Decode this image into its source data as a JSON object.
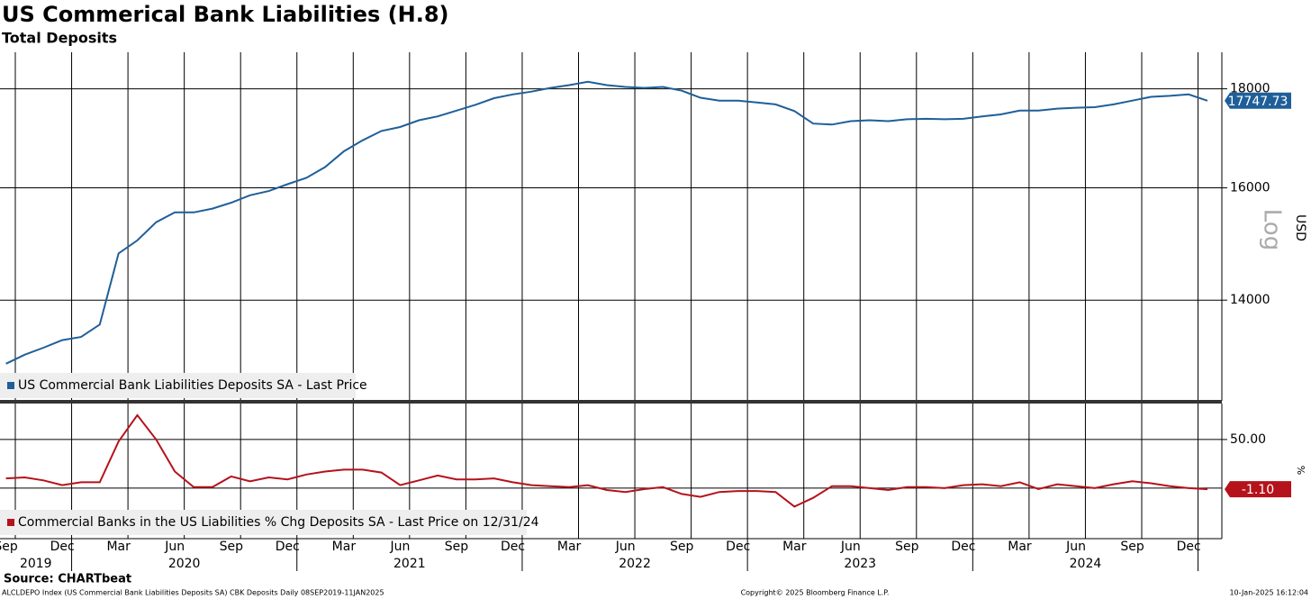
{
  "title": "US Commerical Bank Liabilities (H.8)",
  "subtitle": "Total Deposits",
  "source": "Source: CHARTbeat",
  "footer_left": "ALCLDEPO Index (US Commercial Bank Liabilities Deposits SA) CBK Deposits  Daily 08SEP2019-11JAN2025",
  "footer_center": "Copyright© 2025 Bloomberg Finance L.P.",
  "footer_right": "10-Jan-2025 16:12:04",
  "x": [
    "2019-09",
    "2019-10",
    "2019-11",
    "2019-12",
    "2020-01",
    "2020-02",
    "2020-03",
    "2020-04",
    "2020-05",
    "2020-06",
    "2020-07",
    "2020-08",
    "2020-09",
    "2020-10",
    "2020-11",
    "2020-12",
    "2021-01",
    "2021-02",
    "2021-03",
    "2021-04",
    "2021-05",
    "2021-06",
    "2021-07",
    "2021-08",
    "2021-09",
    "2021-10",
    "2021-11",
    "2021-12",
    "2022-01",
    "2022-02",
    "2022-03",
    "2022-04",
    "2022-05",
    "2022-06",
    "2022-07",
    "2022-08",
    "2022-09",
    "2022-10",
    "2022-11",
    "2022-12",
    "2023-01",
    "2023-02",
    "2023-03",
    "2023-04",
    "2023-05",
    "2023-06",
    "2023-07",
    "2023-08",
    "2023-09",
    "2023-10",
    "2023-11",
    "2023-12",
    "2024-01",
    "2024-02",
    "2024-03",
    "2024-04",
    "2024-05",
    "2024-06",
    "2024-07",
    "2024-08",
    "2024-09",
    "2024-10",
    "2024-11",
    "2024-12",
    "2025-01"
  ],
  "xticks": [
    {
      "value": "2019-09",
      "label": "Sep"
    },
    {
      "value": "2019-12",
      "label": "Dec"
    },
    {
      "value": "2020-03",
      "label": "Mar"
    },
    {
      "value": "2020-06",
      "label": "Jun"
    },
    {
      "value": "2020-09",
      "label": "Sep"
    },
    {
      "value": "2020-12",
      "label": "Dec"
    },
    {
      "value": "2021-03",
      "label": "Mar"
    },
    {
      "value": "2021-06",
      "label": "Jun"
    },
    {
      "value": "2021-09",
      "label": "Sep"
    },
    {
      "value": "2021-12",
      "label": "Dec"
    },
    {
      "value": "2022-03",
      "label": "Mar"
    },
    {
      "value": "2022-06",
      "label": "Jun"
    },
    {
      "value": "2022-09",
      "label": "Sep"
    },
    {
      "value": "2022-12",
      "label": "Dec"
    },
    {
      "value": "2023-03",
      "label": "Mar"
    },
    {
      "value": "2023-06",
      "label": "Jun"
    },
    {
      "value": "2023-09",
      "label": "Sep"
    },
    {
      "value": "2023-12",
      "label": "Dec"
    },
    {
      "value": "2024-03",
      "label": "Mar"
    },
    {
      "value": "2024-06",
      "label": "Jun"
    },
    {
      "value": "2024-09",
      "label": "Sep"
    },
    {
      "value": "2024-12",
      "label": "Dec"
    }
  ],
  "years": [
    "2019",
    "2020",
    "2021",
    "2022",
    "2023",
    "2024"
  ],
  "chart_data": [
    {
      "type": "line",
      "log": true,
      "ylabel": "USD",
      "scale_label": "Log",
      "ylim": [
        12420,
        18800
      ],
      "yticks": [
        18000,
        16000,
        14000
      ],
      "grid": true,
      "series": [
        {
          "name": "US Commercial Bank Liabilities Deposits SA - Last Price",
          "color": "#1f5f99",
          "values": [
            12980,
            13120,
            13230,
            13350,
            13400,
            13600,
            14800,
            15030,
            15360,
            15540,
            15540,
            15610,
            15720,
            15860,
            15940,
            16070,
            16190,
            16400,
            16710,
            16930,
            17120,
            17200,
            17340,
            17420,
            17540,
            17660,
            17800,
            17880,
            17940,
            18020,
            18080,
            18150,
            18080,
            18040,
            18020,
            18040,
            17960,
            17810,
            17750,
            17750,
            17710,
            17670,
            17530,
            17270,
            17250,
            17320,
            17340,
            17320,
            17360,
            17370,
            17360,
            17370,
            17420,
            17460,
            17540,
            17540,
            17580,
            17600,
            17610,
            17670,
            17750,
            17830,
            17850,
            17880,
            17747.73
          ],
          "last_label": "17747.73"
        }
      ]
    },
    {
      "type": "line",
      "log": false,
      "ylabel": "%",
      "ylim": [
        -52,
        87
      ],
      "yticks": [
        {
          "value": 50,
          "label": "50.00"
        }
      ],
      "grid": true,
      "series": [
        {
          "name": "Commercial Banks in the US Liabilities % Chg Deposits SA - Last Price on 12/31/24",
          "color": "#b5121b",
          "values": [
            10,
            11,
            8,
            3,
            6,
            6,
            48,
            75,
            50,
            17,
            1,
            1,
            12,
            7,
            11,
            9,
            14,
            17,
            19,
            19,
            16,
            3,
            8,
            13,
            9,
            9,
            10,
            6,
            3,
            2,
            1,
            3,
            -2,
            -4,
            -1,
            1,
            -6,
            -9,
            -4,
            -3,
            -3,
            -4,
            -19,
            -10,
            2,
            2,
            0,
            -2,
            1,
            1,
            0,
            3,
            4,
            2,
            6,
            -1,
            4,
            2,
            0,
            4,
            7,
            5,
            2,
            0,
            -1.1
          ],
          "last_label": "-1.10"
        }
      ]
    }
  ]
}
